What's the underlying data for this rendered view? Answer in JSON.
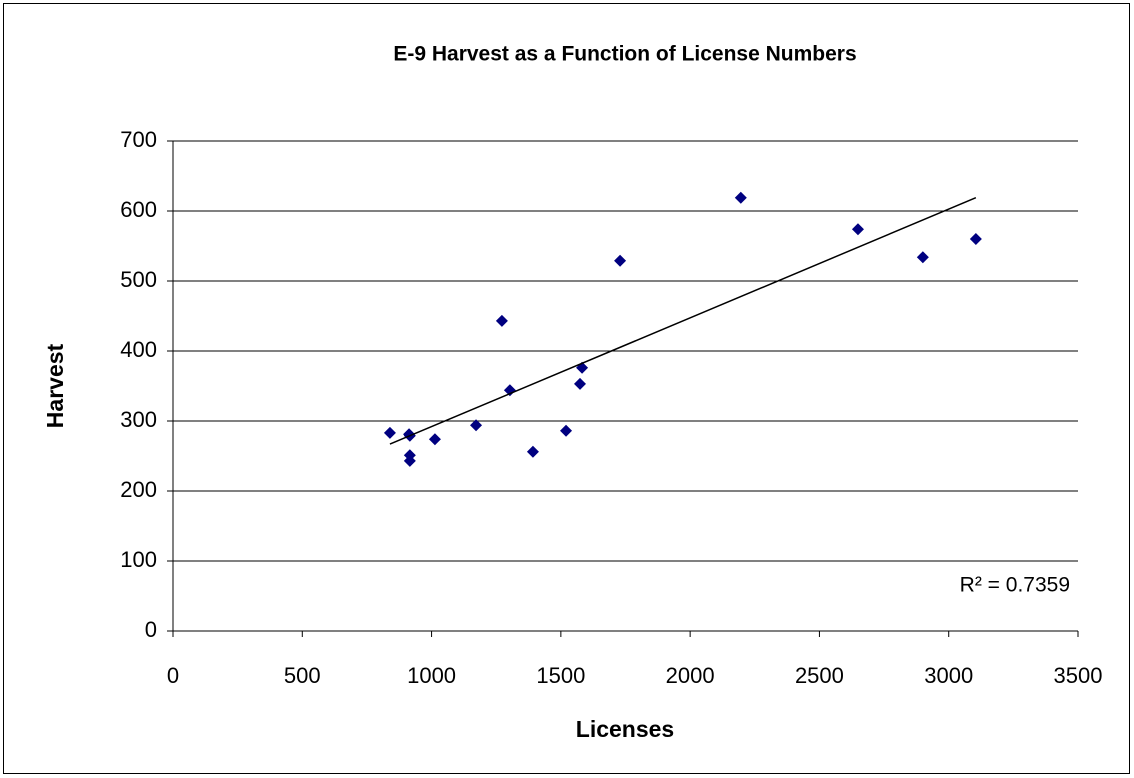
{
  "chart_data": {
    "type": "scatter",
    "title": "E-9 Harvest as a Function of License Numbers",
    "x_label": "Licenses",
    "y_label": "Harvest",
    "x": [
      839,
      913,
      916,
      916,
      916,
      1013,
      1172,
      1272,
      1303,
      1392,
      1520,
      1574,
      1582,
      1729,
      2196,
      2649,
      2900,
      3105
    ],
    "series": [
      {
        "color": "#000080",
        "values": [
          283,
          281,
          279,
          251,
          243,
          274,
          294,
          443,
          344,
          256,
          286,
          353,
          376,
          529,
          619,
          574,
          534,
          560
        ]
      }
    ],
    "trendline": {
      "x": [
        839,
        3105
      ],
      "y": [
        267,
        619
      ],
      "color": "#000000"
    },
    "annotation": "R² = 0.7359",
    "xlim": [
      0,
      3500
    ],
    "xticks": [
      0,
      500,
      1000,
      1500,
      2000,
      2500,
      3000,
      3500
    ],
    "ylim": [
      0,
      700
    ],
    "yticks": [
      0,
      100,
      200,
      300,
      400,
      500,
      600,
      700
    ],
    "grid": true
  }
}
